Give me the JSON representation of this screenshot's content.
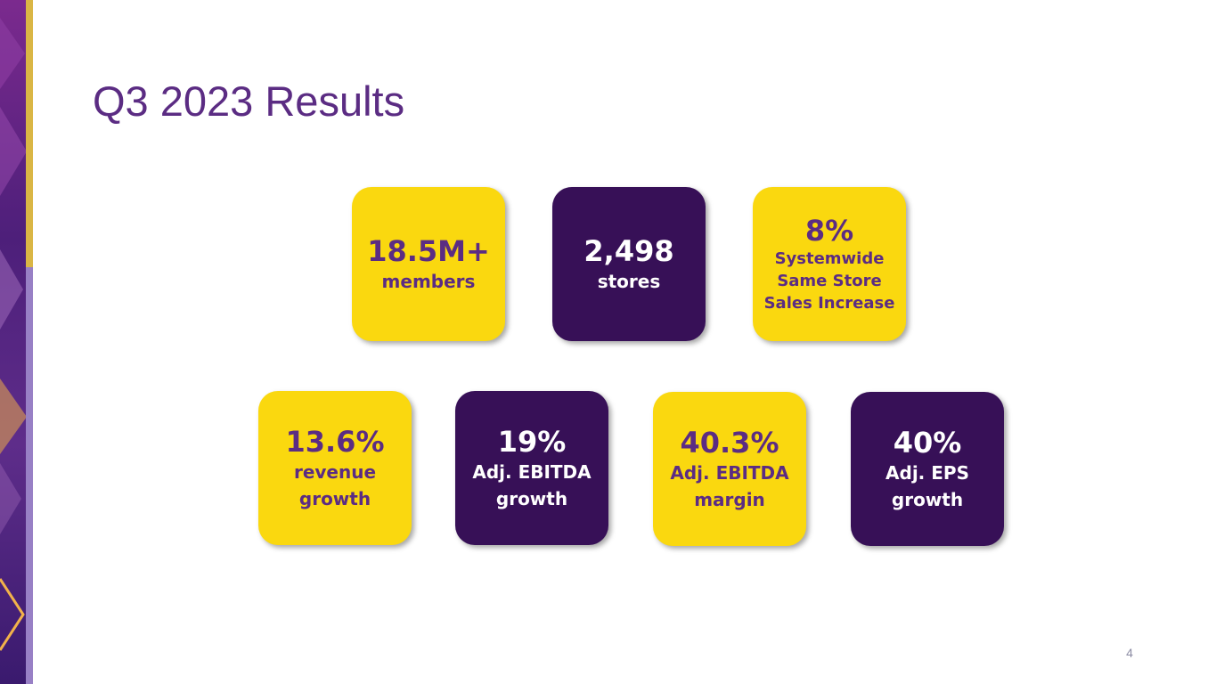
{
  "slide": {
    "title": "Q3 2023 Results",
    "page_number": "4"
  },
  "colors": {
    "title": "#5b2c83",
    "yellow_tile": "#fad80f",
    "purple_tile": "#371057",
    "yellow_tile_text": "#5b2c83",
    "purple_tile_text": "#ffffff"
  },
  "metrics": {
    "members": {
      "value": "18.5M+",
      "label": "members"
    },
    "stores": {
      "value": "2,498",
      "label": "stores"
    },
    "same_store_sales": {
      "value": "8%",
      "label": "Systemwide\nSame Store\nSales Increase"
    },
    "revenue_growth": {
      "value": "13.6%",
      "label": "revenue\ngrowth"
    },
    "adj_ebitda_growth": {
      "value": "19%",
      "label": "Adj. EBITDA\ngrowth"
    },
    "adj_ebitda_margin": {
      "value": "40.3%",
      "label": "Adj. EBITDA\nmargin"
    },
    "adj_eps_growth": {
      "value": "40%",
      "label": "Adj. EPS\ngrowth"
    }
  }
}
